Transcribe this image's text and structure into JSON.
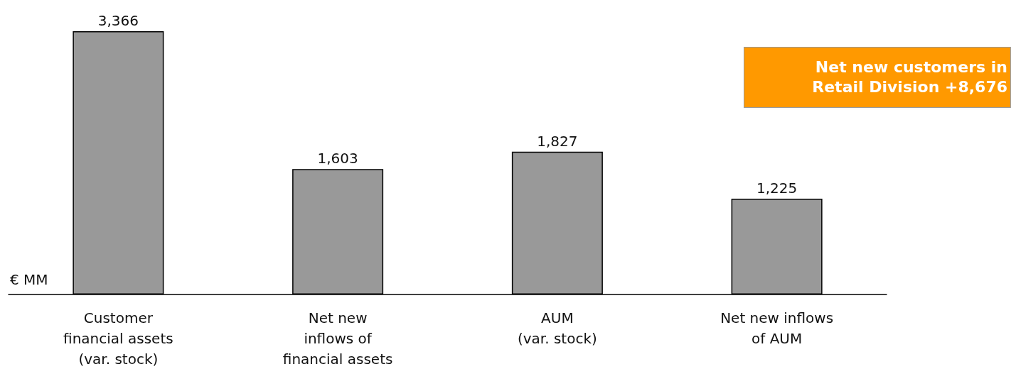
{
  "chart_data": {
    "type": "bar",
    "ylabel": "€ MM",
    "categories": [
      "Customer\nfinancial assets\n(var. stock)",
      "Net new\ninflows of\nfinancial assets",
      "AUM\n(var. stock)",
      "Net new inflows\nof AUM"
    ],
    "values": [
      3366,
      1603,
      1827,
      1225
    ],
    "color": "#999999",
    "value_labels": [
      "3,366",
      "1,603",
      "1,827",
      "1,225"
    ],
    "grid": false,
    "annotations": [
      "Net new customers in Retail Division +8,676"
    ]
  }
}
